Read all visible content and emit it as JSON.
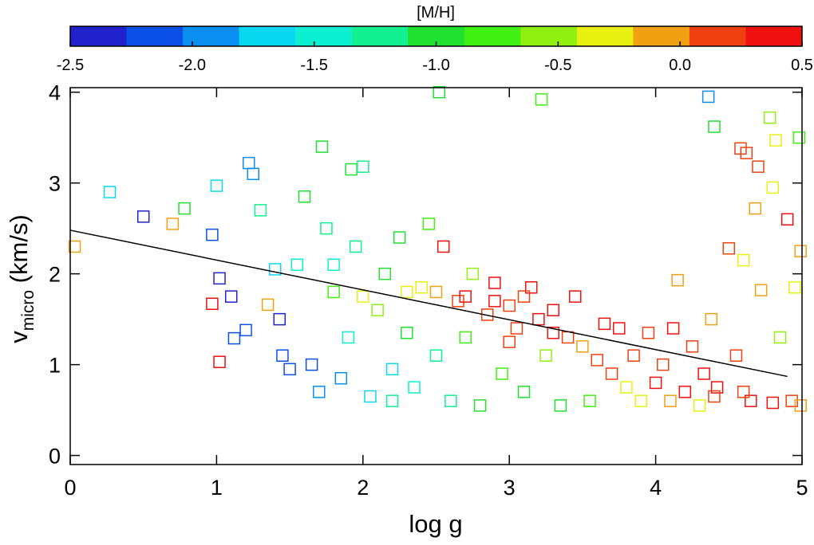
{
  "chart_data": {
    "type": "scatter",
    "xlabel": "log g",
    "ylabel": {
      "main": "v",
      "sub": "micro",
      "unit": "(km/s)"
    },
    "xlim": [
      0,
      5
    ],
    "xticks": [
      0,
      1,
      2,
      3,
      4,
      5
    ],
    "ylim": [
      -0.1,
      4.05
    ],
    "yticks": [
      0,
      1,
      2,
      3,
      4
    ],
    "colorbar": {
      "label": "[M/H]",
      "zlim": [
        -2.5,
        0.5
      ],
      "zticks": [
        -2.5,
        {
          "value": -2.0,
          "label": "-2.0"
        },
        -1.5,
        {
          "value": -1.0,
          "label": "-1.0"
        },
        -0.5,
        {
          "value": 0.0,
          "label": "0.0"
        },
        0.5
      ],
      "colormap": [
        "#2222cc",
        "#0a4fe8",
        "#0a8ff0",
        "#0ad8f0",
        "#0af0d0",
        "#10f090",
        "#20e030",
        "#40f010",
        "#90f010",
        "#e8f010",
        "#f0a010",
        "#f04010",
        "#f01010"
      ]
    },
    "x": [
      0.03,
      0.27,
      0.5,
      0.7,
      0.78,
      0.97,
      1.0,
      0.97,
      1.02,
      1.02,
      1.1,
      1.12,
      1.22,
      1.25,
      1.2,
      1.3,
      1.35,
      1.4,
      1.43,
      1.45,
      1.5,
      1.55,
      1.6,
      1.65,
      1.7,
      1.72,
      1.75,
      1.8,
      1.85,
      1.9,
      1.92,
      1.95,
      2.0,
      2.05,
      2.1,
      2.15,
      2.2,
      2.25,
      2.3,
      2.35,
      2.4,
      2.45,
      2.5,
      2.52,
      2.55,
      2.6,
      2.65,
      2.7,
      2.75,
      2.8,
      2.85,
      2.9,
      2.95,
      3.0,
      3.05,
      3.1,
      3.15,
      3.2,
      3.22,
      3.25,
      3.3,
      3.35,
      3.4,
      3.45,
      3.5,
      3.55,
      3.6,
      3.65,
      3.7,
      3.75,
      3.8,
      3.85,
      3.9,
      3.95,
      4.0,
      4.05,
      4.1,
      4.12,
      4.15,
      4.2,
      4.25,
      4.3,
      4.33,
      4.36,
      4.38,
      4.4,
      4.42,
      4.5,
      4.55,
      4.58,
      4.6,
      4.62,
      4.65,
      4.68,
      4.7,
      4.72,
      4.78,
      4.8,
      4.82,
      4.85,
      4.9,
      4.93,
      4.95,
      4.98,
      4.99,
      4.99,
      2.7,
      2.9,
      3.1,
      2.5,
      2.3,
      2.0,
      1.8,
      3.0,
      3.3,
      2.2,
      4.6,
      4.8,
      4.4
    ],
    "values": [
      2.3,
      2.9,
      2.63,
      2.55,
      2.72,
      2.43,
      2.97,
      1.67,
      1.03,
      1.95,
      1.75,
      1.29,
      3.22,
      3.1,
      1.38,
      2.7,
      1.66,
      2.05,
      1.5,
      1.1,
      0.95,
      2.1,
      2.85,
      1.0,
      0.7,
      3.4,
      2.5,
      1.8,
      0.85,
      1.3,
      3.15,
      2.3,
      3.18,
      0.65,
      1.6,
      2.0,
      0.95,
      2.4,
      1.35,
      0.75,
      1.85,
      2.55,
      1.1,
      4.0,
      2.3,
      0.6,
      1.7,
      1.3,
      2.0,
      0.55,
      1.55,
      1.9,
      0.9,
      1.65,
      1.4,
      0.7,
      1.85,
      1.5,
      3.92,
      1.1,
      1.6,
      0.55,
      1.3,
      1.75,
      1.2,
      0.6,
      1.05,
      1.45,
      0.9,
      1.4,
      0.75,
      1.1,
      0.6,
      1.35,
      0.8,
      1.0,
      0.6,
      1.4,
      1.93,
      0.7,
      1.2,
      0.55,
      0.9,
      3.95,
      1.5,
      3.62,
      0.75,
      2.28,
      1.1,
      3.38,
      2.15,
      3.33,
      0.6,
      2.72,
      3.18,
      1.82,
      3.72,
      2.95,
      3.47,
      1.3,
      2.6,
      0.6,
      1.85,
      3.5,
      2.25,
      0.55,
      1.75,
      1.7,
      1.75,
      1.8,
      1.8,
      1.75,
      2.1,
      1.25,
      1.35,
      0.6,
      0.7,
      0.58,
      0.65
    ],
    "color_values": [
      0.0,
      -1.8,
      -2.3,
      -0.1,
      -1.0,
      -2.2,
      -1.8,
      0.4,
      0.4,
      -2.3,
      -2.3,
      -2.2,
      -2.0,
      -1.9,
      -2.2,
      -1.2,
      0.0,
      -1.8,
      -2.3,
      -2.2,
      -2.2,
      -1.5,
      -1.1,
      -2.1,
      -2.0,
      -1.0,
      -1.2,
      -0.8,
      -1.9,
      -1.5,
      -1.1,
      -1.3,
      -1.2,
      -1.7,
      -0.5,
      -1.0,
      -1.6,
      -0.9,
      -1.1,
      -1.5,
      -0.3,
      -0.8,
      -1.2,
      -1.0,
      0.3,
      -1.3,
      0.1,
      -0.8,
      -0.6,
      -1.0,
      0.2,
      0.3,
      -0.8,
      0.1,
      0.2,
      -1.1,
      0.4,
      0.3,
      -0.7,
      -0.6,
      0.4,
      -1.0,
      0.1,
      0.3,
      -0.1,
      -0.8,
      0.2,
      0.3,
      0.1,
      0.4,
      -0.4,
      0.2,
      -0.2,
      0.1,
      0.3,
      0.2,
      0.0,
      0.4,
      -0.1,
      0.3,
      0.1,
      -0.2,
      0.3,
      -1.9,
      0.0,
      -1.0,
      0.4,
      0.1,
      0.2,
      0.1,
      -0.2,
      0.2,
      0.3,
      -0.1,
      0.2,
      0.0,
      -0.6,
      -0.4,
      -0.2,
      -0.6,
      0.3,
      0.1,
      -0.3,
      -0.7,
      -0.1,
      0.0,
      0.4,
      0.3,
      0.2,
      0.0,
      -0.2,
      -0.4,
      -1.4,
      0.2,
      0.3,
      -1.2,
      0.2,
      0.3,
      0.1
    ],
    "fit": {
      "x": [
        0,
        4.9
      ],
      "values": [
        2.48,
        0.87
      ],
      "color": "#000000"
    }
  }
}
